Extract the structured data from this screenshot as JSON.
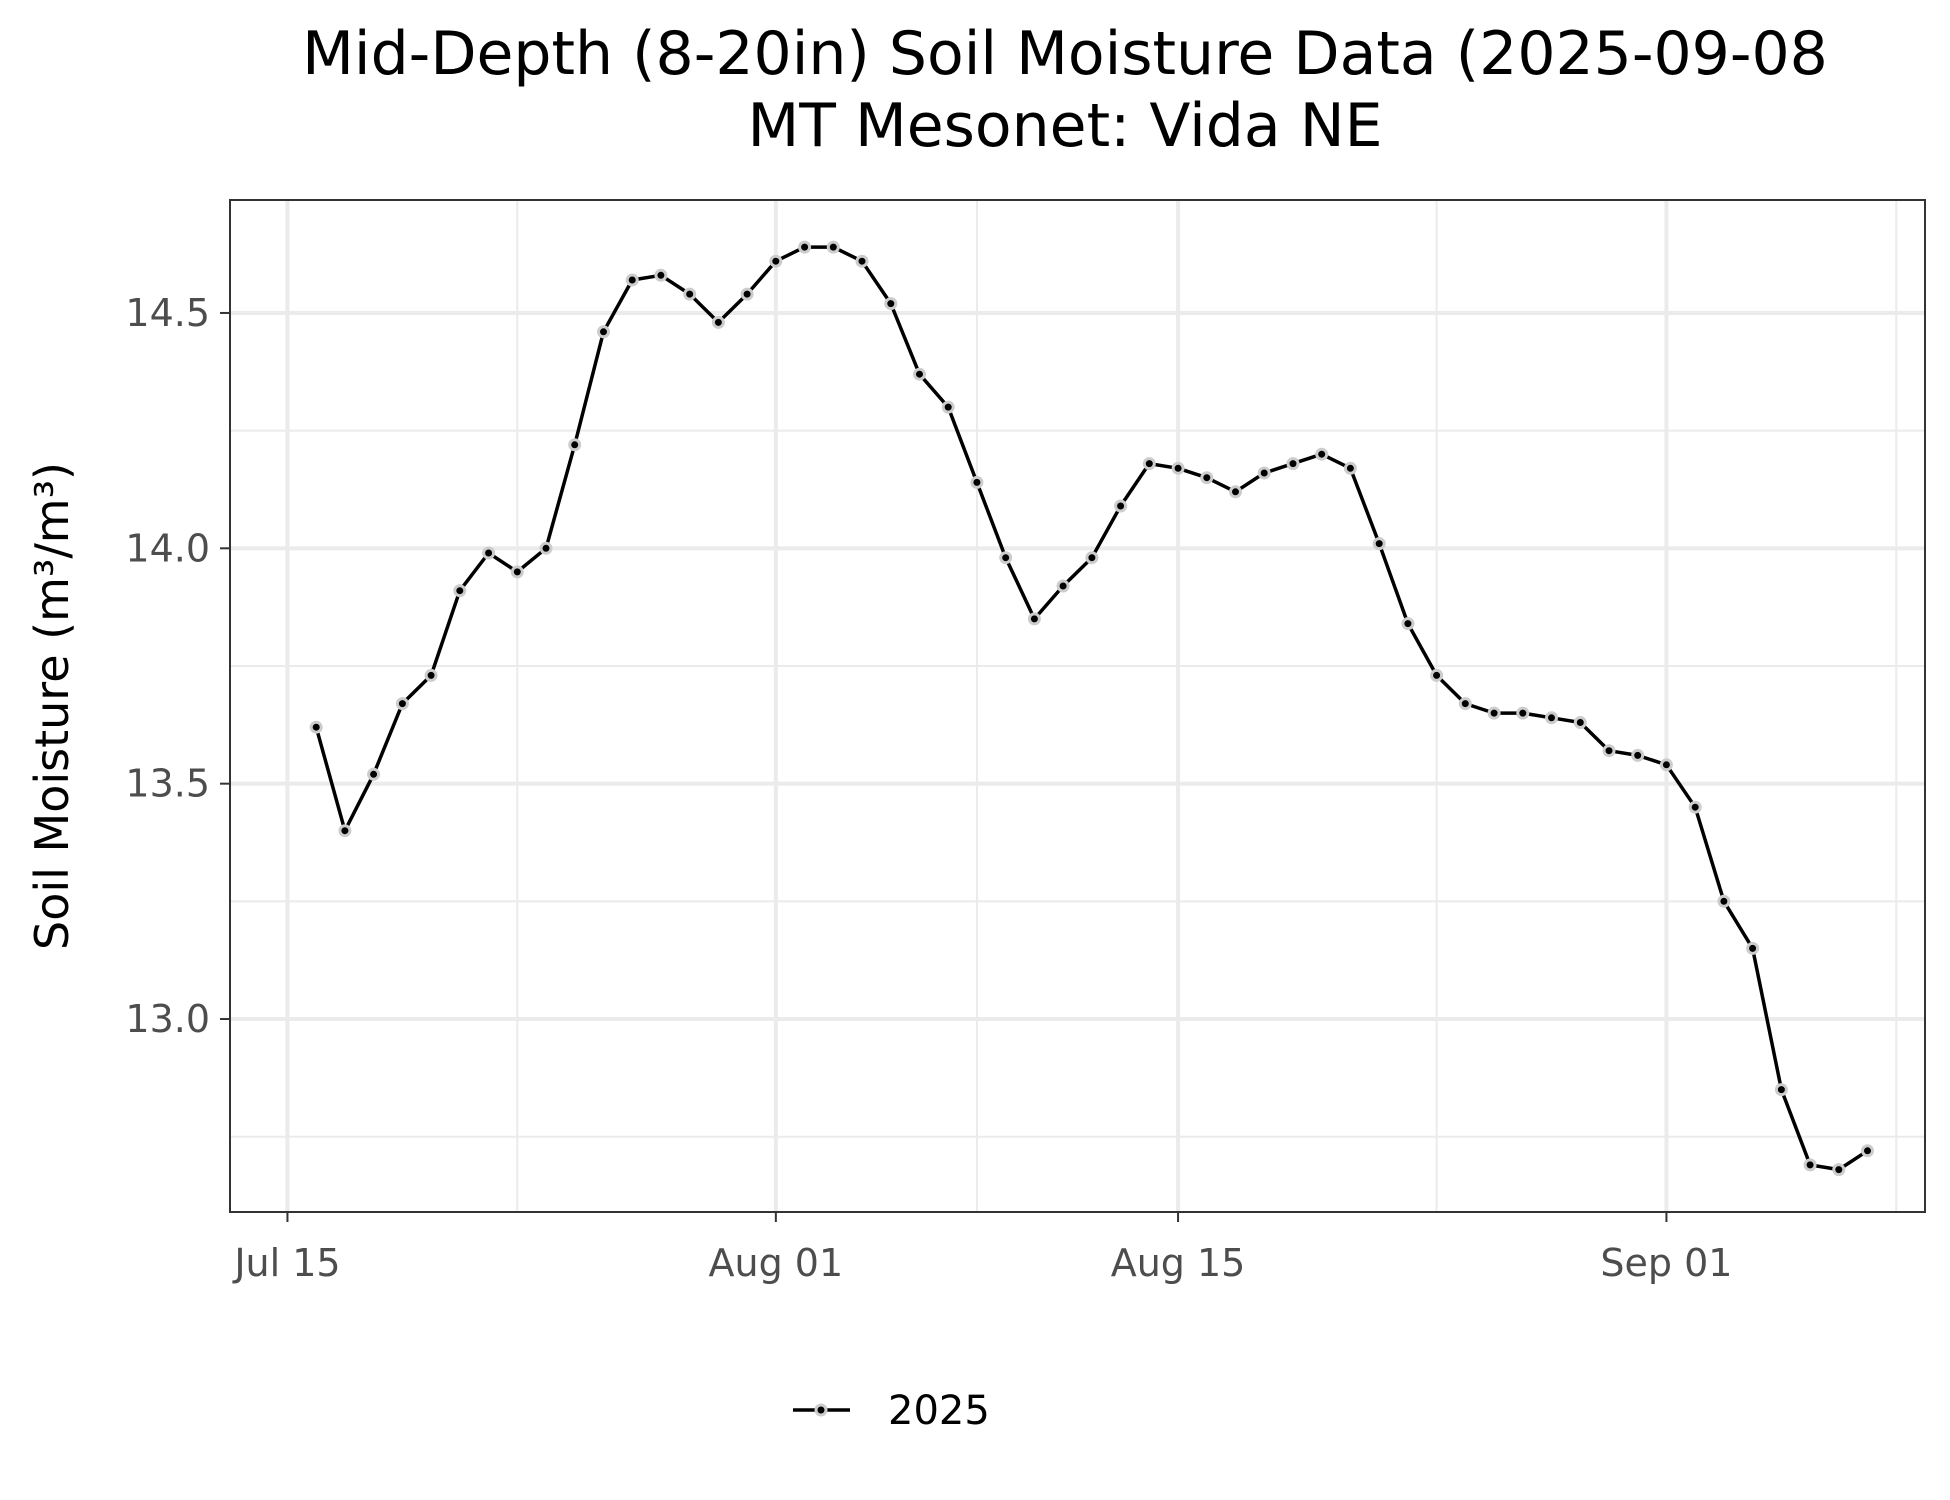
{
  "chart_data": {
    "type": "line",
    "title": "Mid-Depth (8-20in) Soil Moisture Data (2025-09-08",
    "subtitle": "MT Mesonet: Vida NE",
    "ylabel": "Soil Moisture (m³/m³)",
    "xlabel": "",
    "xlim": [
      "2025-07-13",
      "2025-09-10"
    ],
    "ylim": [
      12.59,
      14.74
    ],
    "x_ticks": [
      {
        "date": "2025-07-15",
        "label": "Jul 15"
      },
      {
        "date": "2025-08-01",
        "label": "Aug 01"
      },
      {
        "date": "2025-08-15",
        "label": "Aug 15"
      },
      {
        "date": "2025-09-01",
        "label": "Sep 01"
      }
    ],
    "x_minor_ticks": [
      "2025-07-23",
      "2025-08-08",
      "2025-08-24",
      "2025-09-09"
    ],
    "y_ticks": [
      {
        "value": 13.0,
        "label": "13.0"
      },
      {
        "value": 13.5,
        "label": "13.5"
      },
      {
        "value": 14.0,
        "label": "14.0"
      },
      {
        "value": 14.5,
        "label": "14.5"
      }
    ],
    "y_minor_ticks": [
      12.75,
      13.25,
      13.75,
      14.25
    ],
    "grid": true,
    "legend_position": "bottom",
    "series": [
      {
        "name": "2025",
        "color": "#000000",
        "x": [
          "2025-07-16",
          "2025-07-17",
          "2025-07-18",
          "2025-07-19",
          "2025-07-20",
          "2025-07-21",
          "2025-07-22",
          "2025-07-23",
          "2025-07-24",
          "2025-07-25",
          "2025-07-26",
          "2025-07-27",
          "2025-07-28",
          "2025-07-29",
          "2025-07-30",
          "2025-07-31",
          "2025-08-01",
          "2025-08-02",
          "2025-08-03",
          "2025-08-04",
          "2025-08-05",
          "2025-08-06",
          "2025-08-07",
          "2025-08-08",
          "2025-08-09",
          "2025-08-10",
          "2025-08-11",
          "2025-08-12",
          "2025-08-13",
          "2025-08-14",
          "2025-08-15",
          "2025-08-16",
          "2025-08-17",
          "2025-08-18",
          "2025-08-19",
          "2025-08-20",
          "2025-08-21",
          "2025-08-22",
          "2025-08-23",
          "2025-08-24",
          "2025-08-25",
          "2025-08-26",
          "2025-08-27",
          "2025-08-28",
          "2025-08-29",
          "2025-08-30",
          "2025-08-31",
          "2025-09-01",
          "2025-09-02",
          "2025-09-03",
          "2025-09-04",
          "2025-09-05",
          "2025-09-06",
          "2025-09-07",
          "2025-09-08"
        ],
        "y": [
          13.62,
          13.4,
          13.52,
          13.67,
          13.73,
          13.91,
          13.99,
          13.95,
          14.0,
          14.22,
          14.46,
          14.57,
          14.58,
          14.54,
          14.48,
          14.54,
          14.61,
          14.64,
          14.64,
          14.61,
          14.52,
          14.37,
          14.3,
          14.14,
          13.98,
          13.85,
          13.92,
          13.98,
          14.09,
          14.18,
          14.17,
          14.15,
          14.12,
          14.16,
          14.18,
          14.2,
          14.17,
          14.01,
          13.84,
          13.73,
          13.67,
          13.65,
          13.65,
          13.64,
          13.63,
          13.57,
          13.56,
          13.54,
          13.45,
          13.25,
          13.15,
          12.85,
          12.69,
          12.68,
          12.72
        ]
      }
    ]
  }
}
